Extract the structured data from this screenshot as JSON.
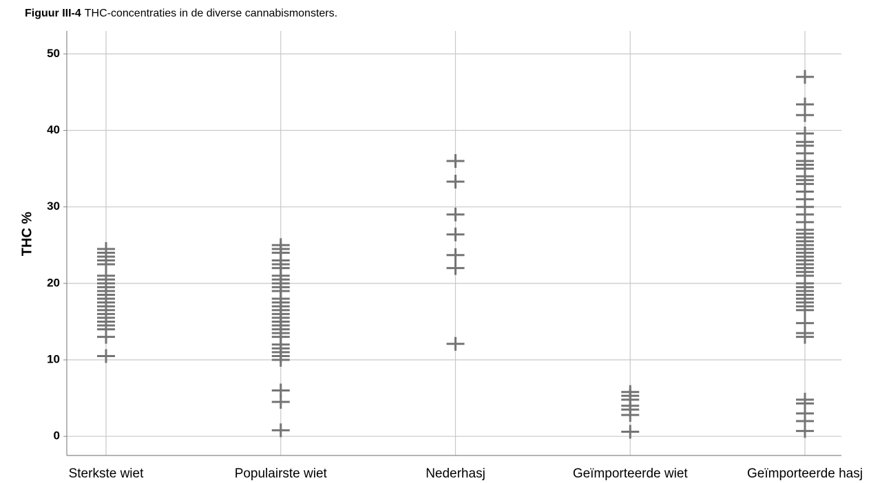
{
  "chart_data": {
    "type": "strip",
    "title_label": "Figuur III-4",
    "title": "THC-concentraties in de diverse cannabismonsters.",
    "y_label": "THC %",
    "categories": [
      "Sterkste wiet",
      "Populairste wiet",
      "Nederhasj",
      "Geïmporteerde wiet",
      "Geïmporteerde hasj"
    ],
    "values": [
      [
        24.5,
        24,
        23.5,
        23,
        22.5,
        21,
        20.5,
        20,
        19.5,
        19,
        18.5,
        18,
        17.5,
        17,
        16.5,
        16,
        15.5,
        15,
        14.5,
        14,
        13,
        10.5
      ],
      [
        25,
        24.5,
        24,
        23,
        22.5,
        22,
        21,
        20.5,
        20,
        19.5,
        19,
        18,
        17.5,
        17,
        16.5,
        16,
        15.5,
        15,
        14.5,
        14,
        13.5,
        13,
        12,
        11.5,
        11,
        10.5,
        10,
        6,
        4.5,
        0.8
      ],
      [
        36,
        33.3,
        29,
        26.4,
        23.7,
        22,
        12.1
      ],
      [
        5.8,
        5.3,
        4.8,
        4,
        3.5,
        2.8,
        0.6
      ],
      [
        47,
        43.4,
        42,
        39.6,
        38.5,
        38,
        37,
        36,
        35.5,
        35,
        34,
        33.5,
        33,
        32,
        31,
        30,
        29,
        28,
        27,
        26.5,
        26,
        25.5,
        25,
        24.5,
        24,
        23.5,
        23,
        22.5,
        22,
        21.5,
        21,
        20,
        19.5,
        19,
        18.5,
        18,
        17.5,
        17,
        16.5,
        14.8,
        13.5,
        13,
        4.8,
        4.3,
        3,
        2,
        0.7
      ]
    ],
    "color": "#747474",
    "ylim": [
      -2.5,
      53
    ],
    "yticks": [
      0,
      10,
      20,
      30,
      40,
      50
    ],
    "grid": true
  }
}
